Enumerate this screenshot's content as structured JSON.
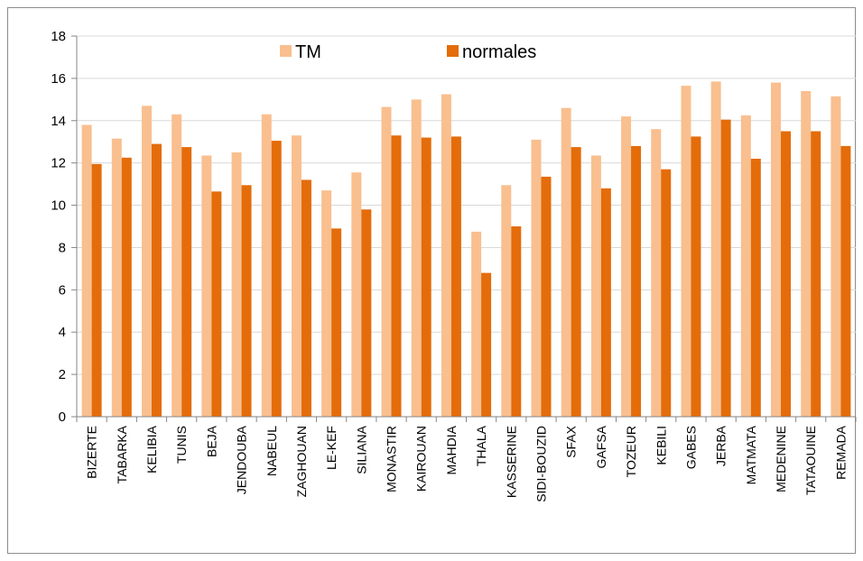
{
  "chart_data": {
    "type": "bar",
    "categories": [
      "BIZERTE",
      "TABARKA",
      "KELIBIA",
      "TUNIS",
      "BEJA",
      "JENDOUBA",
      "NABEUL",
      "ZAGHOUAN",
      "LE-KEF",
      "SILIANA",
      "MONASTIR",
      "KAIROUAN",
      "MAHDIA",
      "THALA",
      "KASSERINE",
      "SIDI-BOUZID",
      "SFAX",
      "GAFSA",
      "TOZEUR",
      "KEBILI",
      "GABES",
      "JERBA",
      "MATMATA",
      "MEDENINE",
      "TATAOUINE",
      "REMADA"
    ],
    "series": [
      {
        "name": "TM",
        "color": "#F9BF8F",
        "values": [
          13.8,
          13.15,
          14.7,
          14.3,
          12.35,
          12.5,
          14.3,
          13.3,
          10.7,
          11.55,
          14.65,
          15.0,
          15.25,
          8.75,
          10.95,
          13.1,
          14.6,
          12.35,
          14.2,
          13.6,
          15.65,
          15.85,
          14.25,
          15.8,
          15.4,
          15.15
        ]
      },
      {
        "name": "normales",
        "color": "#E46C0A",
        "values": [
          11.95,
          12.25,
          12.9,
          12.75,
          10.65,
          10.95,
          13.05,
          11.2,
          8.9,
          9.8,
          13.3,
          13.2,
          13.25,
          6.8,
          9.0,
          11.35,
          12.75,
          10.8,
          12.8,
          11.7,
          13.25,
          14.05,
          12.2,
          13.5,
          13.5,
          12.8
        ]
      }
    ],
    "ylim": [
      0,
      18
    ],
    "yticks": [
      "0",
      "2",
      "4",
      "6",
      "8",
      "10",
      "12",
      "14",
      "16",
      "18"
    ],
    "grid": true,
    "legend": "top",
    "title": "",
    "xlabel": "",
    "ylabel": ""
  }
}
